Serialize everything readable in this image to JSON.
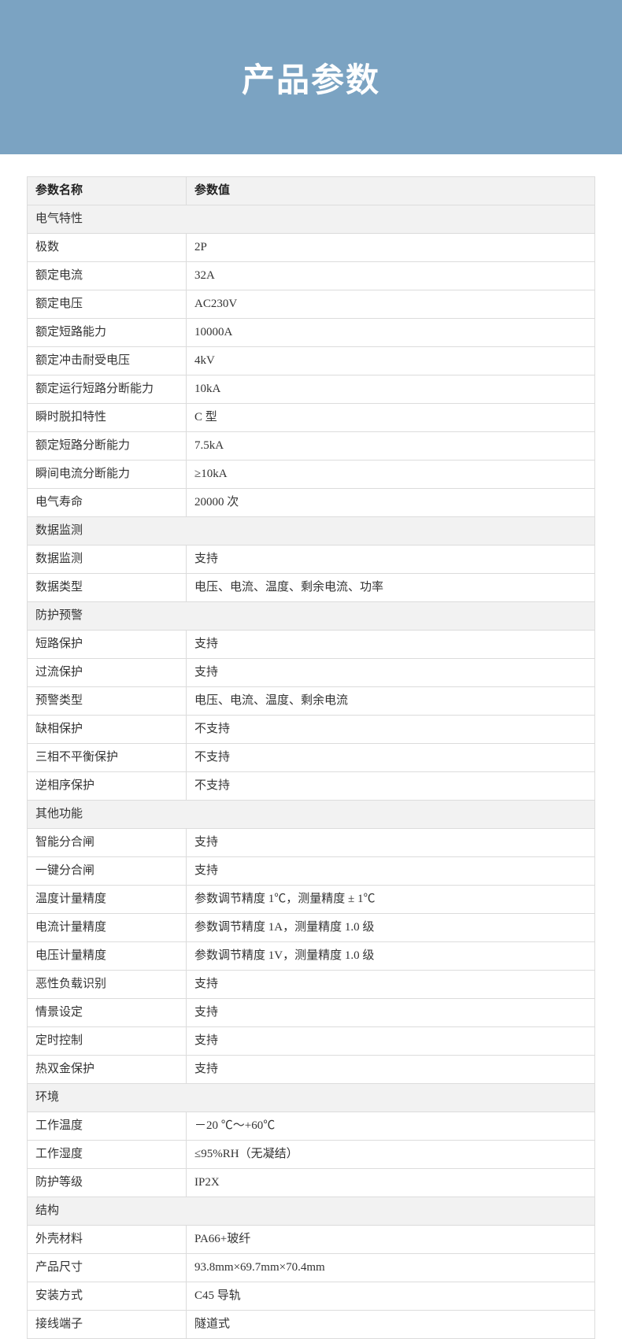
{
  "colors": {
    "banner_bg": "#7ba3c2",
    "banner_text": "#ffffff",
    "border": "#dcdcdc",
    "header_bg": "#f2f2f2",
    "row_bg": "#ffffff",
    "text": "#333333"
  },
  "banner": {
    "title": "产品参数"
  },
  "table": {
    "columns": {
      "name": "参数名称",
      "value": "参数值"
    },
    "sections": [
      {
        "title": "电气特性",
        "rows": [
          {
            "name": "极数",
            "value": "2P"
          },
          {
            "name": "额定电流",
            "value": "32A"
          },
          {
            "name": "额定电压",
            "value": "AC230V"
          },
          {
            "name": "额定短路能力",
            "value": "10000A"
          },
          {
            "name": "额定冲击耐受电压",
            "value": "4kV"
          },
          {
            "name": "额定运行短路分断能力",
            "value": "10kA"
          },
          {
            "name": "瞬时脱扣特性",
            "value": "C 型"
          },
          {
            "name": "额定短路分断能力",
            "value": "7.5kA"
          },
          {
            "name": "瞬间电流分断能力",
            "value": "≥10kA"
          },
          {
            "name": "电气寿命",
            "value": "20000 次"
          }
        ]
      },
      {
        "title": "数据监测",
        "rows": [
          {
            "name": "数据监测",
            "value": "支持"
          },
          {
            "name": "数据类型",
            "value": "电压、电流、温度、剩余电流、功率"
          }
        ]
      },
      {
        "title": "防护预警",
        "rows": [
          {
            "name": "短路保护",
            "value": "支持"
          },
          {
            "name": "过流保护",
            "value": "支持"
          },
          {
            "name": "预警类型",
            "value": "电压、电流、温度、剩余电流"
          },
          {
            "name": "缺相保护",
            "value": "不支持"
          },
          {
            "name": "三相不平衡保护",
            "value": "不支持"
          },
          {
            "name": "逆相序保护",
            "value": "不支持"
          }
        ]
      },
      {
        "title": "其他功能",
        "rows": [
          {
            "name": "智能分合闸",
            "value": "支持"
          },
          {
            "name": "一键分合闸",
            "value": "支持"
          },
          {
            "name": "温度计量精度",
            "value": "参数调节精度 1℃，测量精度 ± 1℃"
          },
          {
            "name": "电流计量精度",
            "value": "参数调节精度 1A，测量精度 1.0 级"
          },
          {
            "name": "电压计量精度",
            "value": "参数调节精度 1V，测量精度 1.0 级"
          },
          {
            "name": "恶性负载识别",
            "value": "支持"
          },
          {
            "name": "情景设定",
            "value": "支持"
          },
          {
            "name": "定时控制",
            "value": "支持"
          },
          {
            "name": "热双金保护",
            "value": "支持"
          }
        ]
      },
      {
        "title": "环境",
        "rows": [
          {
            "name": "工作温度",
            "value": "－20 ℃～+60℃"
          },
          {
            "name": "工作湿度",
            "value": "≤95%RH（无凝结）"
          },
          {
            "name": "防护等级",
            "value": "IP2X"
          }
        ]
      },
      {
        "title": "结构",
        "rows": [
          {
            "name": "外壳材料",
            "value": "PA66+玻纤"
          },
          {
            "name": "产品尺寸",
            "value": "93.8mm×69.7mm×70.4mm"
          },
          {
            "name": "安装方式",
            "value": "C45 导轨"
          },
          {
            "name": "接线端子",
            "value": "隧道式"
          }
        ]
      }
    ]
  }
}
